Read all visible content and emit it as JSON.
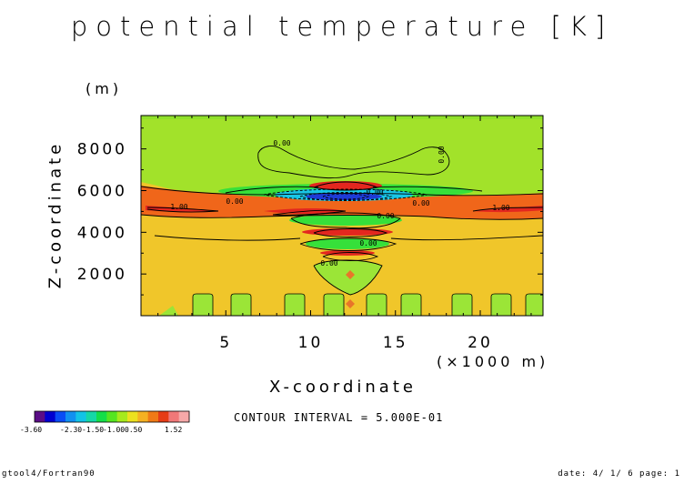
{
  "chart_data": {
    "type": "heatmap",
    "title": "potential temperature [K]",
    "xlabel": "X-coordinate",
    "ylabel": "Z-coordinate",
    "x_unit": "(×1000 m)",
    "y_unit": "(m)",
    "xlim": [
      0,
      23.7
    ],
    "ylim": [
      0,
      9600
    ],
    "x_ticks": [
      "5",
      "10",
      "15",
      "20"
    ],
    "y_ticks": [
      "2000",
      "4000",
      "6000",
      "8000"
    ],
    "contour_labels": [
      "0.00",
      "0.00",
      "1.00",
      "1.00",
      "0.00",
      "0.00",
      "0.00",
      "0.00",
      "0.00",
      "0.00"
    ],
    "contour_interval": "CONTOUR INTERVAL = 5.000E-01",
    "colorbar": {
      "labels": [
        "-3.60",
        "-2.30",
        "-1.50",
        "-1.00",
        "0.50",
        "1.52"
      ],
      "colors": [
        "#5a0d86",
        "#0000d0",
        "#0a4cf5",
        "#1290f0",
        "#13c3e6",
        "#16d7a6",
        "#14de49",
        "#55e521",
        "#a6ea1c",
        "#ece11e",
        "#f5b122",
        "#f07a16",
        "#e63c16",
        "#f07878",
        "#f6a8a8"
      ],
      "min": -3.6,
      "max": 1.52
    },
    "field_colors": {
      "background_low": "#f0c62a",
      "background_high": "#a2e22a",
      "top_band": "#8fe02a",
      "hill": "#9be537",
      "warm_band": "#f0661a",
      "warm_core": "#e3271f",
      "cool": "#36e03a",
      "cold": "#19c6e6",
      "coldest": "#1e3bd6",
      "warm_spot": "#e8752a"
    }
  },
  "footer": {
    "left": "gtool4/Fortran90",
    "right": "date: 4/ 1/ 6 page: 1"
  }
}
